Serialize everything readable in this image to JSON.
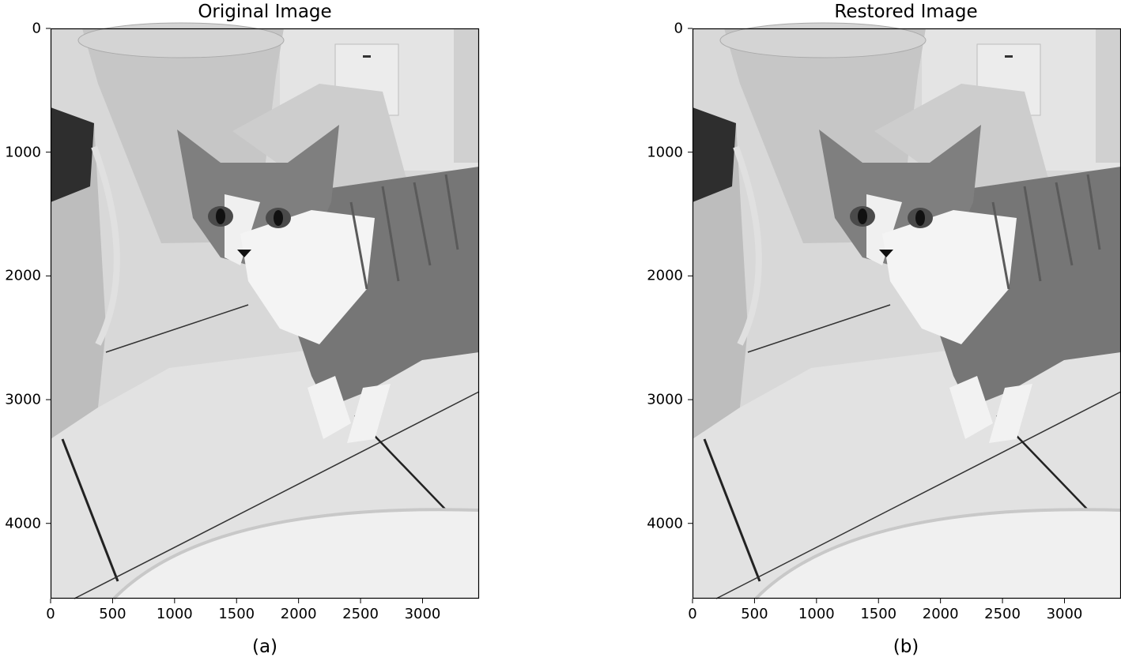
{
  "figure": {
    "panels": [
      {
        "title": "Original Image",
        "caption": "(a)",
        "x_ticks": [
          "0",
          "500",
          "1000",
          "1500",
          "2000",
          "2500",
          "3000"
        ],
        "y_ticks": [
          "0",
          "1000",
          "2000",
          "3000",
          "4000"
        ]
      },
      {
        "title": "Restored Image",
        "caption": "(b)",
        "x_ticks": [
          "0",
          "500",
          "1000",
          "1500",
          "2000",
          "2500",
          "3000"
        ],
        "y_ticks": [
          "0",
          "1000",
          "2000",
          "3000",
          "4000"
        ]
      }
    ],
    "image_extent": {
      "x_max": 3456,
      "y_max": 4608
    },
    "colors": {
      "floor": "#dcdcdc",
      "bucket": "#c4c4c4",
      "cat_body": "#7a7a7a",
      "cat_white": "#f2f2f2",
      "dark": "#303030"
    }
  }
}
